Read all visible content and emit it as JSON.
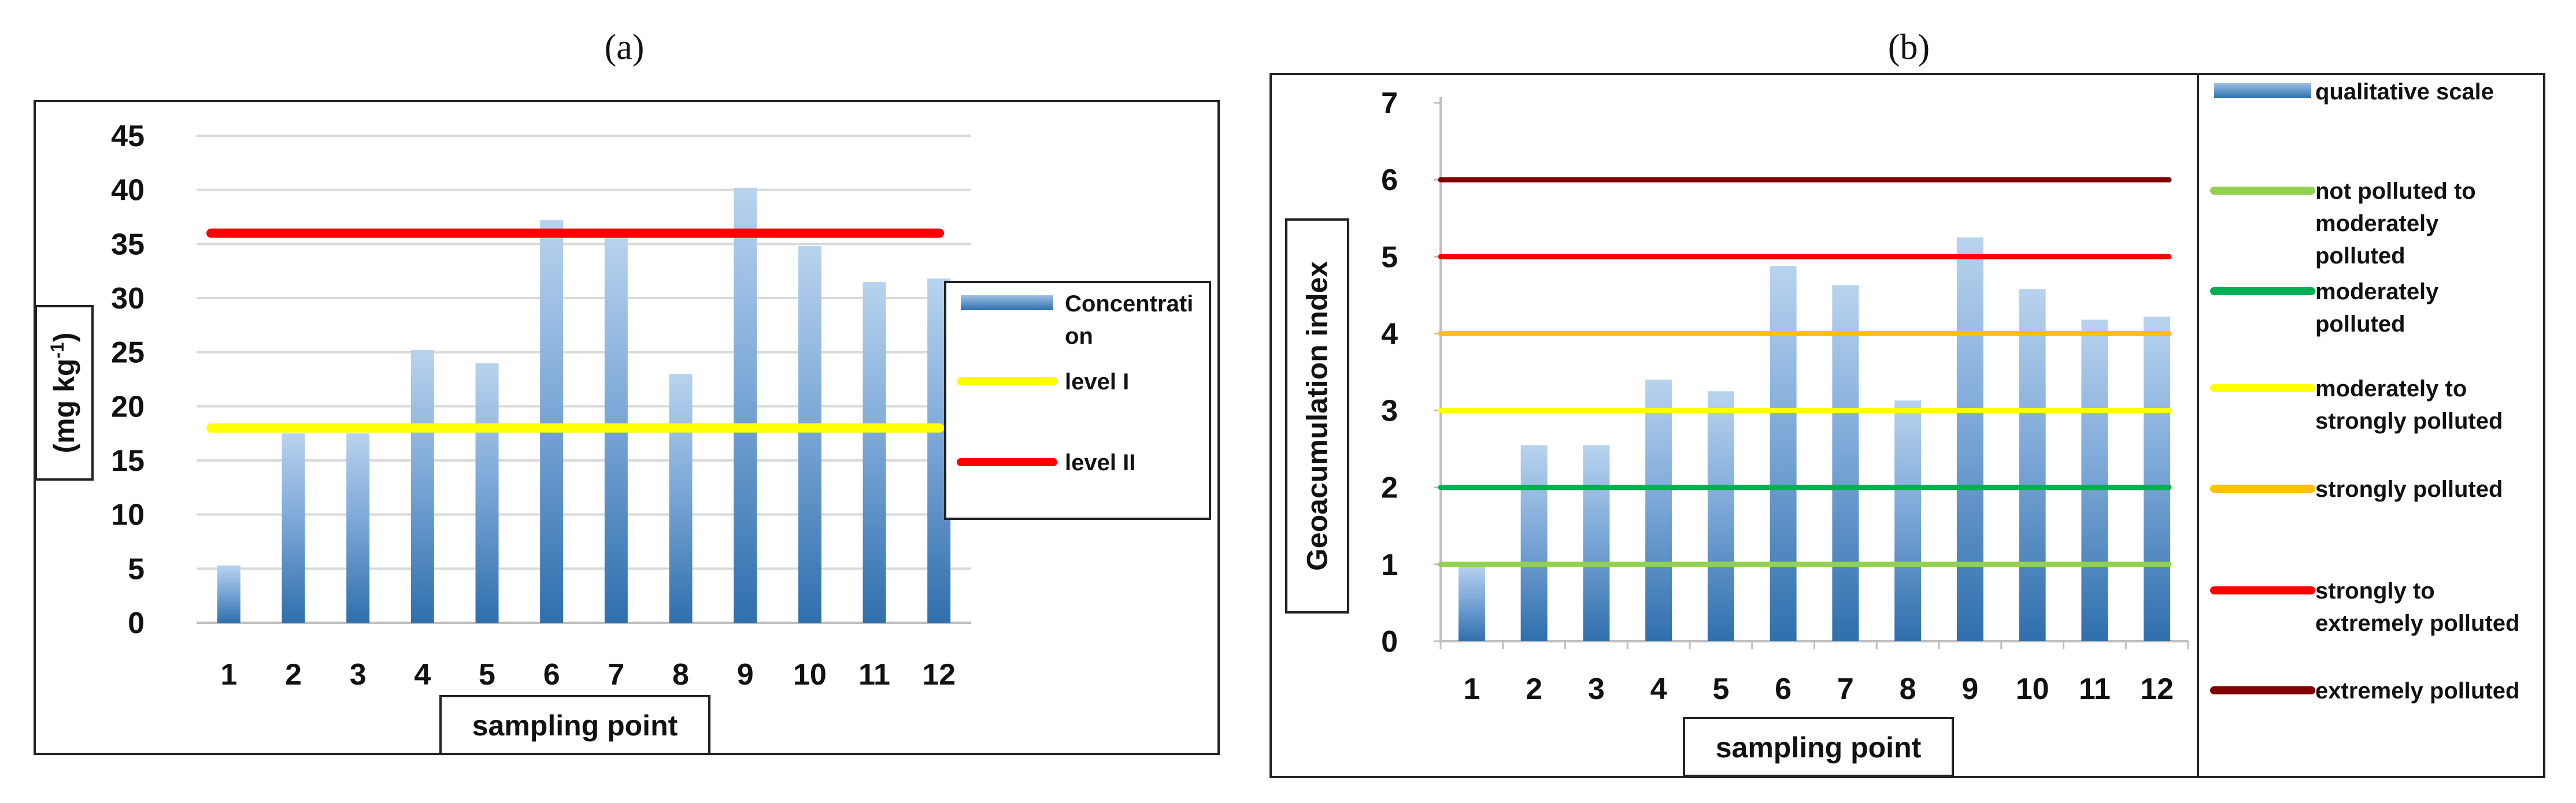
{
  "chart_data": [
    {
      "panel_label": "(a)",
      "type": "bar",
      "xlabel": "sampling point",
      "ylabel": "(mg kg",
      "ylabel_sup": "-1",
      "ylabel_suffix": ")",
      "ylim": [
        0,
        45
      ],
      "yticks": [
        "0",
        "5",
        "10",
        "15",
        "20",
        "25",
        "30",
        "35",
        "40",
        "45"
      ],
      "categories": [
        "1",
        "2",
        "3",
        "4",
        "5",
        "6",
        "7",
        "8",
        "9",
        "10",
        "11",
        "12"
      ],
      "series": [
        {
          "name": "Concentration",
          "legend_lines": [
            "Concentrati",
            "on"
          ],
          "values": [
            5.3,
            17.5,
            17.5,
            25.2,
            24.0,
            37.2,
            36.0,
            23.0,
            40.2,
            34.8,
            31.5,
            31.8
          ]
        }
      ],
      "reference_lines": [
        {
          "name": "level I",
          "value": 18,
          "color": "#ffff00"
        },
        {
          "name": "level II",
          "value": 36,
          "color": "#ff0000"
        }
      ],
      "legend": "right",
      "grid": true
    },
    {
      "panel_label": "(b)",
      "type": "bar",
      "xlabel": "sampling point",
      "ylabel": "Geoacumulation index",
      "ylim": [
        0,
        7
      ],
      "yticks": [
        "0",
        "1",
        "2",
        "3",
        "4",
        "5",
        "6",
        "7"
      ],
      "categories": [
        "1",
        "2",
        "3",
        "4",
        "5",
        "6",
        "7",
        "8",
        "9",
        "10",
        "11",
        "12"
      ],
      "series": [
        {
          "name": "qualitative scale",
          "legend_lines": [
            "qualitative scale"
          ],
          "values": [
            1.0,
            2.55,
            2.55,
            3.4,
            3.25,
            4.88,
            4.63,
            3.13,
            5.25,
            4.58,
            4.18,
            4.22
          ]
        }
      ],
      "reference_lines": [
        {
          "name": "not polluted to moderately polluted",
          "legend_lines": [
            "not polluted to",
            "moderately",
            "polluted"
          ],
          "value": 1,
          "color": "#92d050"
        },
        {
          "name": "moderately polluted",
          "legend_lines": [
            "moderately",
            "polluted"
          ],
          "value": 2,
          "color": "#00b050"
        },
        {
          "name": "moderately to strongly polluted",
          "legend_lines": [
            "moderately to",
            "strongly polluted"
          ],
          "value": 3,
          "color": "#ffff00"
        },
        {
          "name": "strongly polluted",
          "legend_lines": [
            "strongly polluted"
          ],
          "value": 4,
          "color": "#ffc000"
        },
        {
          "name": "strongly to extremely polluted",
          "legend_lines": [
            "strongly to",
            "extremely polluted"
          ],
          "value": 5,
          "color": "#ff0000"
        },
        {
          "name": "extremely polluted",
          "legend_lines": [
            "extremely polluted"
          ],
          "value": 6,
          "color": "#800000"
        }
      ],
      "legend": "right",
      "grid": false
    }
  ]
}
